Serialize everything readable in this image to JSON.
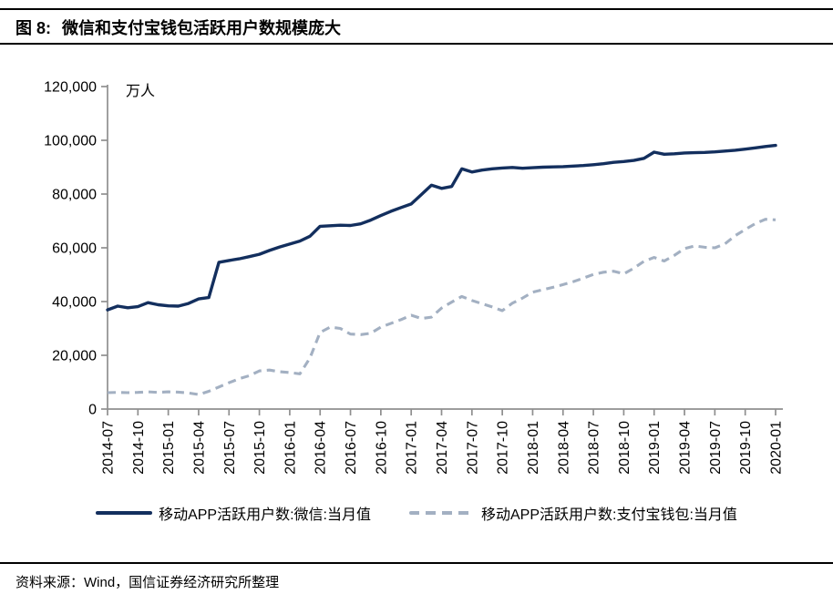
{
  "figure": {
    "label": "图 8:",
    "title": "微信和支付宝钱包活跃用户数规模庞大"
  },
  "source_note": "资料来源：Wind，国信证券经济研究所整理",
  "chart_data": {
    "type": "line",
    "unit_label": "万人",
    "grid": false,
    "legend_position": "bottom",
    "axis_color": "#8f8f8f",
    "ylim": [
      0,
      120000
    ],
    "yticks": [
      {
        "v": 0,
        "label": "0"
      },
      {
        "v": 20000,
        "label": "20,000"
      },
      {
        "v": 40000,
        "label": "40,000"
      },
      {
        "v": 60000,
        "label": "60,000"
      },
      {
        "v": 80000,
        "label": "80,000"
      },
      {
        "v": 100000,
        "label": "100,000"
      },
      {
        "v": 120000,
        "label": "120,000"
      }
    ],
    "xticks": [
      {
        "label": "2014-07"
      },
      {
        "label": "2014-10"
      },
      {
        "label": "2015-01"
      },
      {
        "label": "2015-04"
      },
      {
        "label": "2015-07"
      },
      {
        "label": "2015-10"
      },
      {
        "label": "2016-01"
      },
      {
        "label": "2016-04"
      },
      {
        "label": "2016-07"
      },
      {
        "label": "2016-10"
      },
      {
        "label": "2017-01"
      },
      {
        "label": "2017-04"
      },
      {
        "label": "2017-07"
      },
      {
        "label": "2017-10"
      },
      {
        "label": "2018-01"
      },
      {
        "label": "2018-04"
      },
      {
        "label": "2018-07"
      },
      {
        "label": "2018-10"
      },
      {
        "label": "2019-01"
      },
      {
        "label": "2019-04"
      },
      {
        "label": "2019-07"
      },
      {
        "label": "2019-10"
      },
      {
        "label": "2020-01"
      }
    ],
    "months": [
      "2014-07",
      "2014-08",
      "2014-09",
      "2014-10",
      "2014-11",
      "2014-12",
      "2015-01",
      "2015-02",
      "2015-03",
      "2015-04",
      "2015-05",
      "2015-06",
      "2015-07",
      "2015-08",
      "2015-09",
      "2015-10",
      "2015-11",
      "2015-12",
      "2016-01",
      "2016-02",
      "2016-03",
      "2016-04",
      "2016-05",
      "2016-06",
      "2016-07",
      "2016-08",
      "2016-09",
      "2016-10",
      "2016-11",
      "2016-12",
      "2017-01",
      "2017-02",
      "2017-03",
      "2017-04",
      "2017-05",
      "2017-06",
      "2017-07",
      "2017-08",
      "2017-09",
      "2017-10",
      "2017-11",
      "2017-12",
      "2018-01",
      "2018-02",
      "2018-03",
      "2018-04",
      "2018-05",
      "2018-06",
      "2018-07",
      "2018-08",
      "2018-09",
      "2018-10",
      "2018-11",
      "2018-12",
      "2019-01",
      "2019-02",
      "2019-03",
      "2019-04",
      "2019-05",
      "2019-06",
      "2019-07",
      "2019-08",
      "2019-09",
      "2019-10",
      "2019-11",
      "2019-12",
      "2020-01"
    ],
    "series": [
      {
        "name": "移动APP活跃用户数:微信:当月值",
        "style": "solid",
        "color": "#132f5e",
        "values": [
          36900,
          38300,
          37700,
          38100,
          39600,
          38800,
          38400,
          38300,
          39300,
          41000,
          41500,
          54600,
          55300,
          55900,
          56700,
          57600,
          59000,
          60300,
          61400,
          62500,
          64300,
          68000,
          68200,
          68400,
          68300,
          68900,
          70300,
          72000,
          73600,
          75000,
          76300,
          79800,
          83300,
          82100,
          82800,
          89400,
          88200,
          88900,
          89400,
          89700,
          89900,
          89600,
          89800,
          90000,
          90100,
          90200,
          90400,
          90600,
          90900,
          91300,
          91800,
          92100,
          92500,
          93300,
          95600,
          94800,
          95000,
          95300,
          95400,
          95500,
          95700,
          96000,
          96300,
          96700,
          97200,
          97700,
          98100
        ]
      },
      {
        "name": "移动APP活跃用户数:支付宝钱包:当月值",
        "style": "dashed",
        "color": "#a3b0c2",
        "values": [
          6100,
          6200,
          6100,
          6200,
          6400,
          6200,
          6400,
          6300,
          6000,
          5400,
          6600,
          8200,
          9800,
          11300,
          12400,
          14200,
          14500,
          13900,
          13600,
          13100,
          19000,
          28500,
          30500,
          30000,
          27900,
          27700,
          28200,
          30500,
          31900,
          33300,
          34900,
          33700,
          34200,
          37600,
          39800,
          41900,
          40400,
          39200,
          38000,
          36600,
          39400,
          41300,
          43500,
          44400,
          45300,
          46300,
          47400,
          48700,
          50100,
          50900,
          51300,
          50300,
          52400,
          55000,
          56400,
          55100,
          57200,
          59700,
          60700,
          60200,
          60000,
          61500,
          64500,
          66800,
          69000,
          70600,
          70400
        ]
      }
    ]
  }
}
